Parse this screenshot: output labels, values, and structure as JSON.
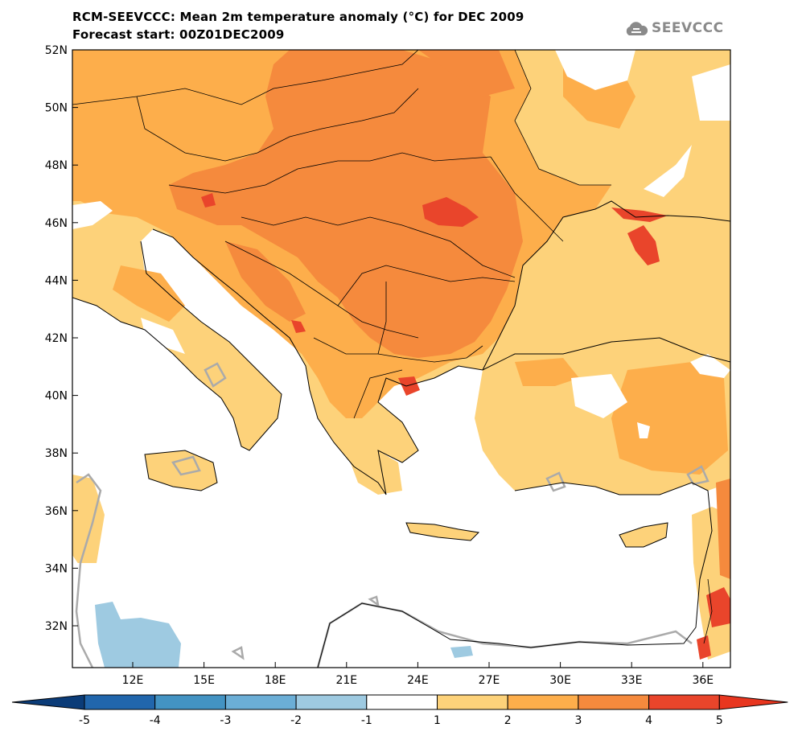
{
  "header": {
    "title_line1": "RCM-SEEVCCC: Mean 2m temperature anomaly (°C) for DEC 2009",
    "title_line2": "Forecast start: 00Z01DEC2009",
    "logo_text": "SEEVCCC"
  },
  "axes": {
    "lat_labels": [
      "52N",
      "50N",
      "48N",
      "46N",
      "44N",
      "42N",
      "40N",
      "38N",
      "36N",
      "34N",
      "32N"
    ],
    "lon_labels": [
      "12E",
      "15E",
      "18E",
      "21E",
      "24E",
      "27E",
      "30E",
      "33E",
      "36E"
    ]
  },
  "colorbar": {
    "ticks": [
      "-5",
      "-4",
      "-3",
      "-2",
      "-1",
      "1",
      "2",
      "3",
      "4",
      "5"
    ],
    "colors": [
      "#08306b",
      "#2166ac",
      "#4393c3",
      "#6baed6",
      "#9ecae1",
      "#ffffff",
      "#fdd27a",
      "#fdae4b",
      "#f58a3d",
      "#e9452b"
    ],
    "below_color": "#0b3c78",
    "above_color": "#e8361f"
  },
  "map_colors": {
    "c1_2": "#fdd27a",
    "c2_3": "#fdae4b",
    "c3_4": "#f58a3d",
    "c4_5": "#e9452b",
    "cm1_2": "#9ecae1",
    "coast": "#000000",
    "zero_contour": "#aaaaaa"
  }
}
